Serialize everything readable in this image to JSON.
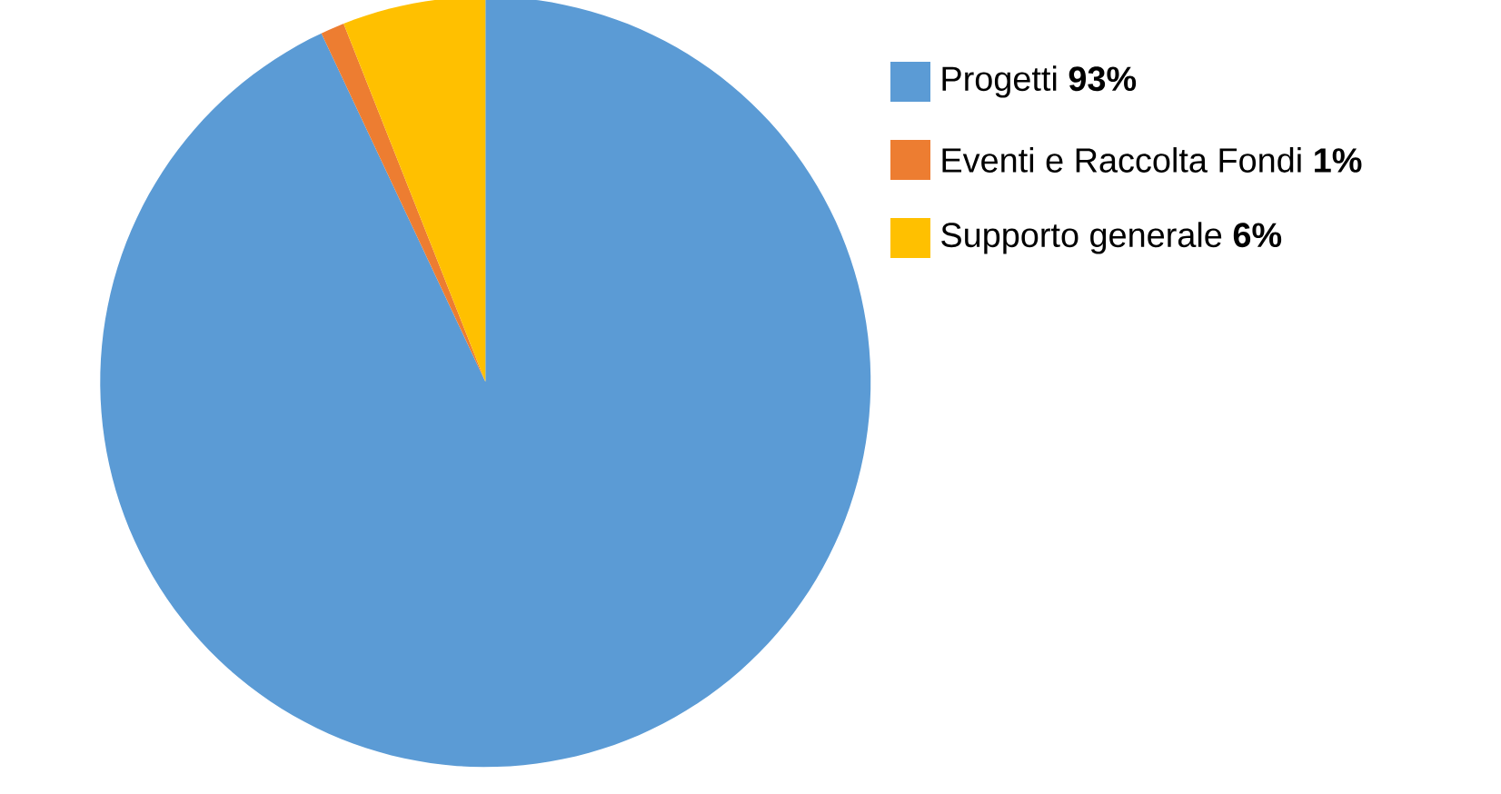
{
  "chart_data": {
    "type": "pie",
    "categories": [
      "Progetti",
      "Eventi e Raccolta Fondi",
      "Supporto generale"
    ],
    "values": [
      93,
      1,
      6
    ],
    "value_labels": [
      "93%",
      "1%",
      "6%"
    ],
    "colors": [
      "#5b9bd5",
      "#ed7d31",
      "#ffc000"
    ],
    "legend": "right"
  }
}
